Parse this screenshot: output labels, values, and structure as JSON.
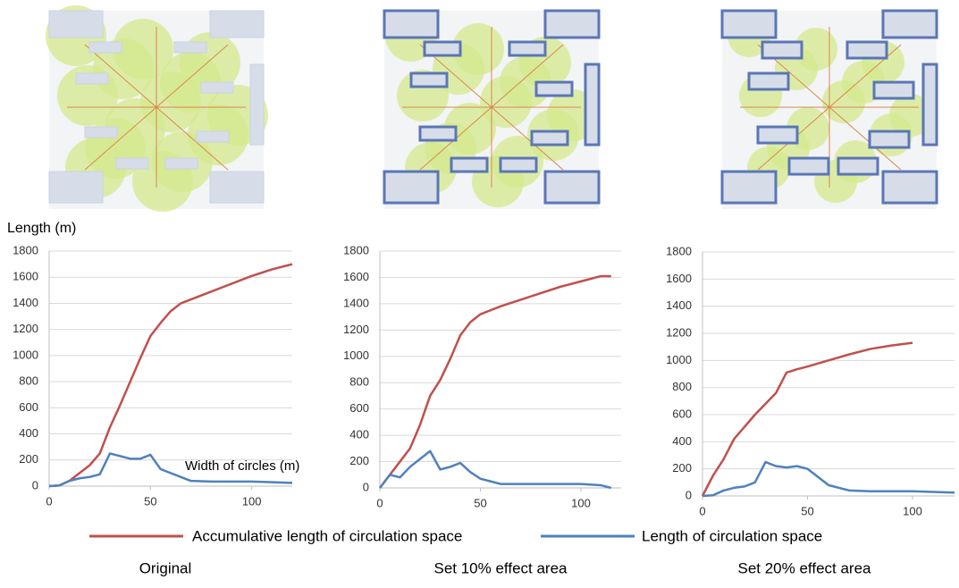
{
  "chart_data": [
    {
      "type": "line",
      "title": "Original",
      "ylabel": "Length (m)",
      "xlabel": "Width of circles (m)",
      "x": [
        0,
        5,
        10,
        15,
        20,
        25,
        30,
        35,
        40,
        45,
        50,
        55,
        60,
        65,
        70,
        80,
        90,
        100,
        110,
        120
      ],
      "xlim": [
        0,
        120
      ],
      "xticks": [
        0,
        50,
        100
      ],
      "ylim": [
        0,
        1800
      ],
      "yticks": [
        0,
        200,
        400,
        600,
        800,
        1000,
        1200,
        1400,
        1600,
        1800
      ],
      "grid": true,
      "series": [
        {
          "name": "Accumulative length of circulation space",
          "color": "#c0504d",
          "values": [
            0,
            5,
            40,
            100,
            160,
            250,
            450,
            620,
            800,
            980,
            1150,
            1250,
            1340,
            1400,
            1430,
            1490,
            1550,
            1610,
            1660,
            1700
          ]
        },
        {
          "name": "Length of circulation space",
          "color": "#4f81bd",
          "values": [
            0,
            5,
            40,
            60,
            70,
            90,
            250,
            230,
            210,
            210,
            240,
            130,
            100,
            70,
            40,
            35,
            35,
            35,
            30,
            25
          ]
        }
      ]
    },
    {
      "type": "line",
      "title": "Set 10% effect area",
      "x": [
        0,
        5,
        10,
        15,
        20,
        25,
        30,
        35,
        40,
        45,
        50,
        55,
        60,
        70,
        80,
        90,
        100,
        110,
        115
      ],
      "xlim": [
        0,
        120
      ],
      "xticks": [
        0,
        50,
        100
      ],
      "ylim": [
        0,
        1800
      ],
      "yticks": [
        0,
        200,
        400,
        600,
        800,
        1000,
        1200,
        1400,
        1600,
        1800
      ],
      "grid": true,
      "series": [
        {
          "color": "#c0504d",
          "values": [
            0,
            100,
            200,
            300,
            480,
            700,
            820,
            980,
            1160,
            1260,
            1320,
            1350,
            1380,
            1430,
            1480,
            1530,
            1570,
            1610,
            1610
          ]
        },
        {
          "color": "#4f81bd",
          "values": [
            0,
            100,
            80,
            160,
            220,
            280,
            140,
            160,
            190,
            120,
            70,
            50,
            30,
            30,
            30,
            30,
            30,
            20,
            0
          ]
        }
      ]
    },
    {
      "type": "line",
      "title": "Set 20% effect area",
      "x": [
        0,
        5,
        10,
        15,
        20,
        25,
        30,
        35,
        40,
        45,
        50,
        60,
        70,
        80,
        90,
        100,
        110,
        120
      ],
      "xlim": [
        0,
        120
      ],
      "xticks": [
        0,
        50,
        100
      ],
      "ylim": [
        0,
        1800
      ],
      "yticks": [
        0,
        200,
        400,
        600,
        800,
        1000,
        1200,
        1400,
        1600,
        1800
      ],
      "grid": true,
      "series": [
        {
          "color": "#c0504d",
          "values": [
            0,
            150,
            270,
            420,
            510,
            600,
            680,
            760,
            910,
            935,
            955,
            1000,
            1045,
            1085,
            1110,
            1130,
            null,
            null
          ]
        },
        {
          "color": "#4f81bd",
          "values": [
            0,
            5,
            40,
            60,
            70,
            100,
            250,
            220,
            210,
            220,
            200,
            80,
            40,
            35,
            35,
            35,
            30,
            25
          ]
        }
      ]
    }
  ]
}
